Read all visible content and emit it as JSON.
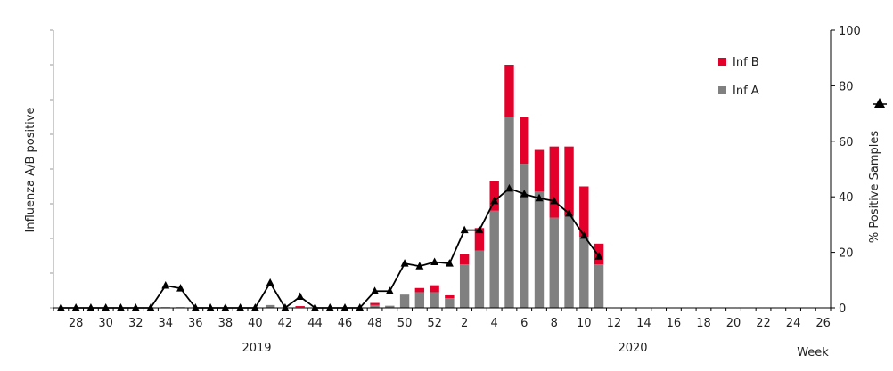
{
  "chart_data": {
    "type": "bar",
    "stacked": true,
    "weeks": [
      27,
      28,
      29,
      30,
      31,
      32,
      33,
      34,
      35,
      36,
      37,
      38,
      39,
      40,
      41,
      42,
      43,
      44,
      45,
      46,
      47,
      48,
      49,
      50,
      51,
      52,
      1,
      2,
      3,
      4,
      5,
      6,
      7,
      8,
      9,
      10,
      11,
      12,
      13,
      14,
      15,
      16,
      17,
      18,
      19,
      20,
      21,
      22,
      23,
      24,
      25,
      26
    ],
    "tick_labels": [
      "28",
      "30",
      "32",
      "34",
      "36",
      "38",
      "40",
      "42",
      "44",
      "46",
      "48",
      "50",
      "52",
      "2",
      "4",
      "6",
      "8",
      "10",
      "12",
      "14",
      "16",
      "18",
      "20",
      "22",
      "24",
      "26"
    ],
    "tick_weeks": [
      28,
      30,
      32,
      34,
      36,
      38,
      40,
      42,
      44,
      46,
      48,
      50,
      52,
      2,
      4,
      6,
      8,
      10,
      12,
      14,
      16,
      18,
      20,
      22,
      24,
      26
    ],
    "year_labels": [
      "2019",
      "2020"
    ],
    "xlabel": "Week",
    "ylabel_left": "Influenza A/B positive",
    "ylabel_right": "% Positive Samples",
    "ylim_left": [
      0,
      80
    ],
    "ylim_right": [
      0,
      100
    ],
    "yticks_right": [
      "0",
      "20",
      "40",
      "60",
      "80",
      "100"
    ],
    "series": [
      {
        "name": "Inf A",
        "color": "#808080",
        "values": [
          0,
          0,
          0,
          0,
          0,
          0,
          0,
          0.2,
          0.2,
          0,
          0,
          0,
          0,
          0,
          0.8,
          0,
          0.2,
          0,
          0,
          0,
          0,
          0.8,
          0.6,
          3.8,
          4.5,
          4.5,
          2.8,
          12.5,
          16.5,
          28,
          55,
          41.5,
          33.5,
          26,
          26.5,
          20.5,
          12.5,
          0,
          0,
          0,
          0,
          0,
          0,
          0,
          0,
          0,
          0,
          0,
          0,
          0,
          0,
          0
        ]
      },
      {
        "name": "Inf B",
        "color": "#e3002b",
        "values": [
          0,
          0,
          0,
          0,
          0,
          0,
          0,
          0,
          0,
          0,
          0,
          0,
          0,
          0,
          0,
          0,
          0.3,
          0,
          0,
          0,
          0,
          0.6,
          0,
          0,
          1.2,
          2,
          0.8,
          3,
          6.5,
          8.5,
          15,
          13.5,
          12,
          20.5,
          20,
          14.5,
          6,
          0,
          0,
          0,
          0,
          0,
          0,
          0,
          0,
          0,
          0,
          0,
          0,
          0,
          0,
          0
        ]
      },
      {
        "name": "% Positive Samples",
        "type": "line",
        "axis": "right",
        "color": "#000000",
        "values": [
          0,
          0,
          0,
          0,
          0,
          0,
          0,
          8,
          7,
          0,
          0,
          0,
          0,
          0,
          9,
          0,
          4,
          0,
          0,
          0,
          0,
          6,
          6,
          16,
          15,
          16.5,
          16,
          28,
          28,
          38.5,
          43,
          41,
          39.5,
          38.5,
          34,
          26,
          18.5,
          null,
          null,
          null,
          null,
          null,
          null,
          null,
          null,
          null,
          null,
          null,
          null,
          null,
          null,
          null
        ]
      }
    ],
    "legend": [
      "Inf B",
      "Inf A"
    ],
    "legend_position": "top-right",
    "grid": false
  }
}
